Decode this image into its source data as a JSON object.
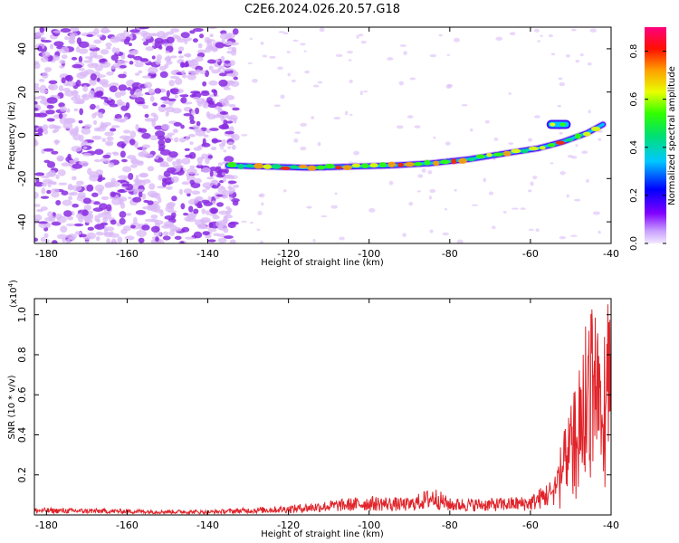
{
  "title": "C2E6.2024.026.20.57.G18",
  "colors": {
    "trace": "#e0242a",
    "scatter_dots": "#8a2be2",
    "scatter_light": "#d9b8f7"
  },
  "chart_data": [
    {
      "type": "heatmap",
      "xlabel": "Height of straight line (km)",
      "ylabel": "Frequency (Hz)",
      "xlim": [
        -183,
        -40
      ],
      "ylim": [
        -50,
        50
      ],
      "xticks": [
        -180,
        -160,
        -140,
        -120,
        -100,
        -80,
        -60,
        -40
      ],
      "yticks": [
        -40,
        -20,
        0,
        20,
        40
      ],
      "colorbar": {
        "label": "Normalized spectral amplitude",
        "range": [
          0,
          0.9
        ],
        "ticks": [
          0.0,
          0.2,
          0.4,
          0.6,
          0.8
        ],
        "colormap": "rainbow (purple to red)"
      },
      "track": {
        "x": [
          -135,
          -125,
          -115,
          -105,
          -95,
          -85,
          -75,
          -65,
          -58,
          -52,
          -46,
          -42
        ],
        "y": [
          -14,
          -14.5,
          -15,
          -14.5,
          -14,
          -13,
          -11,
          -8,
          -6,
          -3,
          1,
          5
        ]
      },
      "secondary_blob": {
        "x": [
          -56,
          -50
        ],
        "y": 5
      },
      "noise_region_x": [
        -183,
        -137
      ],
      "grid": false,
      "legend": "none"
    },
    {
      "type": "line",
      "xlabel": "Height of straight line (km)",
      "ylabel": "SNR (10 * v/v)",
      "scale_note": "(x10",
      "scale_exp": "4",
      "scale_close": ")",
      "xlim": [
        -183,
        -40
      ],
      "ylim": [
        0,
        1.08
      ],
      "xticks": [
        -180,
        -160,
        -140,
        -120,
        -100,
        -80,
        -60,
        -40
      ],
      "yticks": [
        0.2,
        0.4,
        0.6,
        0.8,
        1.0
      ],
      "envelope": {
        "x": [
          -183,
          -140,
          -130,
          -120,
          -110,
          -100,
          -90,
          -84,
          -80,
          -70,
          -60,
          -55,
          -50,
          -47,
          -45,
          -43,
          -40
        ],
        "y": [
          0.03,
          0.02,
          0.03,
          0.04,
          0.06,
          0.08,
          0.07,
          0.12,
          0.07,
          0.07,
          0.08,
          0.15,
          0.45,
          0.7,
          1.05,
          0.85,
          0.9
        ]
      },
      "grid": false,
      "legend": "none"
    }
  ],
  "axis_labels": {
    "x1": "Height of straight line (km)",
    "x2": "Height of straight line (km)"
  }
}
